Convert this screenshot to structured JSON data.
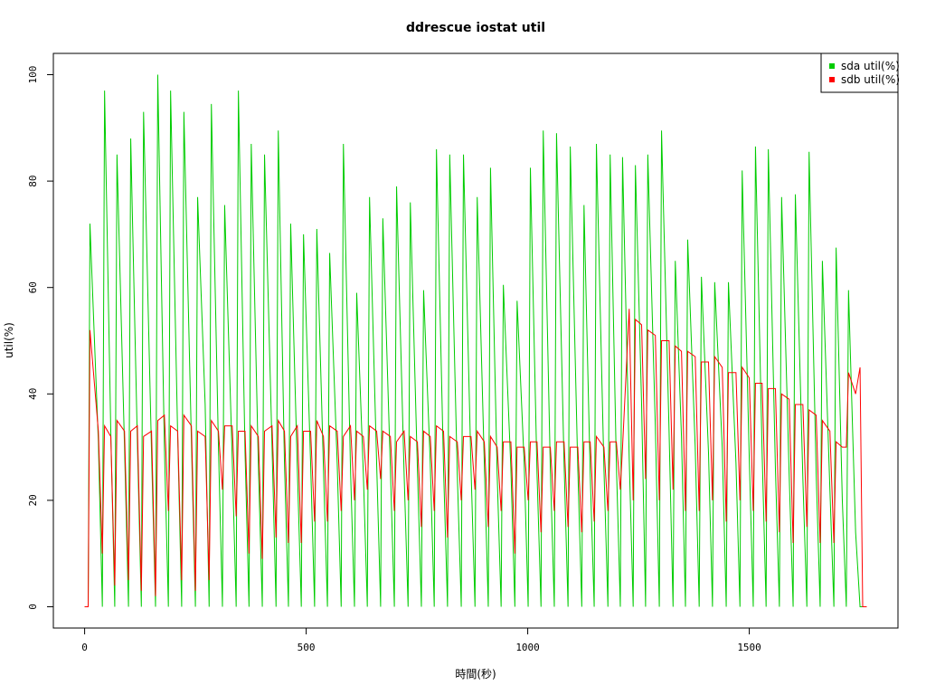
{
  "chart_data": {
    "type": "line",
    "title": "ddrescue iostat util",
    "x_label": "時間(秒)",
    "y_label": "util(%)",
    "x": [
      0,
      8,
      12,
      31,
      40,
      45,
      59,
      68,
      73,
      90,
      99,
      104,
      119,
      128,
      133,
      151,
      160,
      165,
      180,
      189,
      194,
      210,
      219,
      224,
      241,
      250,
      255,
      272,
      281,
      286,
      302,
      311,
      316,
      333,
      342,
      347,
      362,
      371,
      376,
      392,
      401,
      406,
      423,
      432,
      437,
      451,
      460,
      465,
      480,
      489,
      494,
      510,
      519,
      524,
      539,
      548,
      553,
      570,
      579,
      584,
      600,
      609,
      614,
      629,
      638,
      643,
      659,
      668,
      673,
      690,
      699,
      704,
      721,
      730,
      735,
      751,
      760,
      765,
      780,
      789,
      794,
      810,
      819,
      824,
      841,
      850,
      855,
      872,
      881,
      886,
      902,
      911,
      916,
      931,
      940,
      945,
      962,
      971,
      976,
      992,
      1001,
      1006,
      1021,
      1030,
      1035,
      1051,
      1060,
      1065,
      1082,
      1091,
      1096,
      1113,
      1122,
      1127,
      1141,
      1150,
      1155,
      1172,
      1181,
      1186,
      1200,
      1209,
      1214,
      1229,
      1238,
      1243,
      1257,
      1266,
      1271,
      1288,
      1297,
      1302,
      1319,
      1328,
      1333,
      1347,
      1356,
      1361,
      1378,
      1387,
      1392,
      1408,
      1417,
      1422,
      1439,
      1448,
      1453,
      1470,
      1479,
      1484,
      1500,
      1509,
      1514,
      1529,
      1538,
      1543,
      1559,
      1568,
      1573,
      1590,
      1599,
      1604,
      1621,
      1630,
      1635,
      1651,
      1660,
      1665,
      1682,
      1691,
      1696,
      1710,
      1719,
      1724,
      1740,
      1750,
      1756,
      1765
    ],
    "series": [
      {
        "name": "sda util(%)",
        "color": "#00cc00",
        "values": [
          0,
          0,
          72,
          31,
          0,
          97,
          33,
          0,
          85,
          30,
          0,
          88,
          31,
          0,
          93,
          29,
          0,
          100,
          30,
          0,
          97,
          32,
          0,
          93,
          31,
          0,
          77,
          38,
          0,
          94.5,
          30,
          0,
          75.5,
          28,
          0,
          97,
          29,
          0,
          87,
          27,
          0,
          85,
          30,
          0,
          89.5,
          27,
          0,
          72,
          26,
          0,
          70,
          27,
          0,
          71,
          26,
          0,
          66.5,
          27,
          0,
          87,
          26,
          0,
          59,
          25,
          0,
          77,
          27,
          0,
          73,
          26,
          0,
          79,
          25,
          0,
          76,
          26,
          0,
          59.5,
          27,
          0,
          86,
          26,
          0,
          85,
          25,
          0,
          85,
          26,
          0,
          77,
          27,
          0,
          82.5,
          25,
          0,
          60.5,
          26,
          0,
          57.5,
          27,
          0,
          82.5,
          25,
          0,
          89.5,
          26,
          0,
          89,
          27,
          0,
          86.5,
          26,
          0,
          75.5,
          25,
          0,
          87,
          26,
          0,
          85,
          27,
          0,
          84.5,
          28,
          0,
          83,
          38,
          0,
          85,
          34,
          0,
          89.5,
          33,
          0,
          65,
          32,
          0,
          69,
          30,
          0,
          62,
          29,
          0,
          61,
          30,
          0,
          61,
          27,
          0,
          82,
          28,
          0,
          86.5,
          29,
          0,
          86,
          26,
          0,
          77,
          25,
          0,
          77.5,
          24,
          0,
          85.5,
          25,
          0,
          65,
          22,
          0,
          67.5,
          20,
          0,
          59.5,
          14,
          0,
          0,
          0
        ]
      },
      {
        "name": "sdb util(%)",
        "color": "#ff0000",
        "values": [
          0,
          0,
          52,
          33,
          10,
          34,
          32,
          4,
          35,
          33,
          5,
          33,
          34,
          3,
          32,
          33,
          2,
          35,
          36,
          18,
          34,
          33,
          5,
          36,
          34,
          3,
          33,
          32,
          5,
          35,
          33,
          22,
          34,
          34,
          17,
          33,
          33,
          10,
          34,
          32,
          9,
          33,
          34,
          13,
          35,
          33,
          12,
          32,
          34,
          12,
          33,
          33,
          16,
          35,
          32,
          16,
          34,
          33,
          18,
          32,
          34,
          20,
          33,
          32,
          22,
          34,
          33,
          24,
          33,
          32,
          18,
          31,
          33,
          20,
          32,
          31,
          15,
          33,
          32,
          18,
          34,
          33,
          13,
          32,
          31,
          20,
          32,
          32,
          22,
          33,
          31,
          15,
          32,
          30,
          18,
          31,
          31,
          10,
          30,
          30,
          20,
          31,
          31,
          14,
          30,
          30,
          18,
          31,
          31,
          15,
          30,
          30,
          14,
          31,
          31,
          16,
          32,
          30,
          18,
          31,
          31,
          22,
          30,
          56,
          20,
          54,
          53,
          24,
          52,
          51,
          20,
          50,
          50,
          22,
          49,
          48,
          18,
          48,
          47,
          18,
          46,
          46,
          20,
          47,
          45,
          16,
          44,
          44,
          20,
          45,
          43,
          18,
          42,
          42,
          16,
          41,
          41,
          14,
          40,
          39,
          12,
          38,
          38,
          15,
          37,
          36,
          12,
          35,
          33,
          12,
          31,
          30,
          30,
          44,
          40,
          45,
          0,
          0
        ]
      }
    ],
    "xlim": [
      -70.6,
      1835.6
    ],
    "ylim": [
      -4,
      104
    ],
    "xticks": [
      0,
      500,
      1000,
      1500
    ],
    "yticks": [
      0,
      20,
      40,
      60,
      80,
      100
    ],
    "legend": "top-right"
  }
}
